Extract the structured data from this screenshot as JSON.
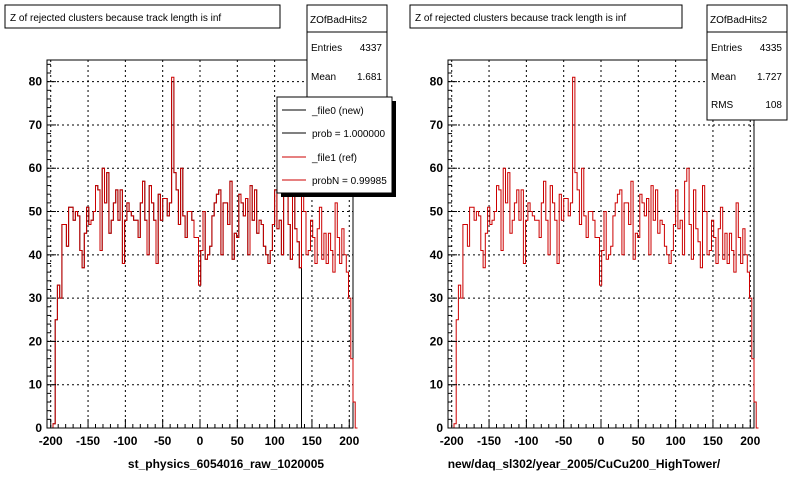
{
  "chart_data": [
    {
      "type": "line",
      "title": "Z of rejected clusters  because track length is inf",
      "xlabel": "st_physics_6054016_raw_1020005",
      "ylabel": "",
      "xlim": [
        -205,
        205
      ],
      "ylim": [
        0,
        85
      ],
      "xticks": [
        -200,
        -150,
        -100,
        -50,
        0,
        50,
        100,
        150,
        200
      ],
      "yticks": [
        0,
        10,
        20,
        30,
        40,
        50,
        60,
        70,
        80
      ],
      "grid": true,
      "stats": {
        "name": "ZOfBadHits2",
        "rows": [
          {
            "label": "Entries",
            "value": "4337"
          },
          {
            "label": "Mean",
            "value": "1.681"
          }
        ]
      },
      "legend": {
        "placement": "top-right",
        "entries": [
          {
            "label": "_file0 (new)",
            "color": "#000000"
          },
          {
            "label": "prob = 1.000000",
            "color": "#000000"
          },
          {
            "label": "_file1 (ref)",
            "color": "#cc0000"
          },
          {
            "label": "probN = 0.99985",
            "color": "#cc0000"
          }
        ]
      },
      "series": [
        {
          "color": "#000000",
          "bin_start": -200,
          "bin_width": 3,
          "values": [
            0,
            1,
            25,
            33,
            30,
            47,
            47,
            42,
            51,
            51,
            48,
            50,
            49,
            41,
            37,
            45,
            51,
            47,
            48,
            50,
            56,
            55,
            41,
            60,
            52,
            59,
            45,
            48,
            52,
            55,
            48,
            55,
            38,
            48,
            52,
            50,
            49,
            48,
            48,
            44,
            52,
            57,
            48,
            40,
            56,
            52,
            48,
            38,
            54,
            48,
            53,
            53,
            49,
            52,
            80,
            59,
            55,
            47,
            60,
            49,
            44,
            50,
            50,
            48,
            44,
            44,
            33,
            41,
            50,
            39,
            40,
            42,
            49,
            52,
            54,
            55,
            40,
            52,
            52,
            47,
            57,
            39,
            45,
            44,
            54,
            52,
            49,
            53,
            40,
            56,
            48,
            55,
            45,
            48,
            47,
            42,
            40,
            38,
            41,
            47,
            55,
            46,
            48,
            40,
            57,
            60,
            47,
            39,
            55,
            46,
            43,
            37,
            0,
            0,
            0,
            0,
            0,
            0,
            0,
            0,
            0,
            0,
            0,
            0,
            0,
            0,
            0,
            0,
            0,
            0,
            0,
            0,
            0,
            0
          ]
        },
        {
          "color": "#cc0000",
          "bin_start": -200,
          "bin_width": 3,
          "values": [
            0,
            1,
            25,
            33,
            30,
            47,
            47,
            42,
            51,
            51,
            48,
            50,
            49,
            41,
            37,
            45,
            51,
            47,
            48,
            50,
            56,
            55,
            41,
            60,
            52,
            59,
            45,
            48,
            52,
            55,
            48,
            55,
            38,
            48,
            52,
            50,
            49,
            48,
            48,
            44,
            52,
            57,
            48,
            40,
            56,
            52,
            48,
            38,
            54,
            48,
            53,
            53,
            49,
            52,
            81,
            59,
            55,
            47,
            60,
            49,
            44,
            50,
            50,
            48,
            44,
            44,
            33,
            41,
            50,
            39,
            40,
            42,
            49,
            52,
            54,
            55,
            40,
            52,
            52,
            47,
            57,
            39,
            45,
            44,
            54,
            52,
            49,
            53,
            40,
            56,
            48,
            55,
            45,
            48,
            47,
            42,
            40,
            38,
            41,
            47,
            55,
            46,
            48,
            40,
            57,
            60,
            47,
            39,
            55,
            46,
            43,
            37,
            56,
            50,
            40,
            41,
            48,
            44,
            38,
            46,
            51,
            39,
            45,
            38,
            45,
            41,
            36,
            52,
            44,
            38,
            46,
            40,
            36,
            30,
            16,
            6,
            0
          ]
        }
      ]
    },
    {
      "type": "line",
      "title": "Z of rejected clusters  because track length is inf",
      "xlabel": "new/daq_sl302/year_2005/CuCu200_HighTower/",
      "ylabel": "",
      "xlim": [
        -205,
        205
      ],
      "ylim": [
        0,
        85
      ],
      "xticks": [
        -200,
        -150,
        -100,
        -50,
        0,
        50,
        100,
        150,
        200
      ],
      "yticks": [
        0,
        10,
        20,
        30,
        40,
        50,
        60,
        70,
        80
      ],
      "grid": true,
      "stats": {
        "name": "ZOfBadHits2",
        "rows": [
          {
            "label": "Entries",
            "value": "4335"
          },
          {
            "label": "Mean",
            "value": "1.727"
          },
          {
            "label": "RMS",
            "value": "108"
          }
        ]
      },
      "series": [
        {
          "color": "#cc0000",
          "bin_start": -200,
          "bin_width": 3,
          "values": [
            0,
            1,
            25,
            33,
            30,
            47,
            47,
            42,
            51,
            51,
            48,
            50,
            49,
            41,
            37,
            45,
            51,
            47,
            48,
            50,
            56,
            55,
            41,
            60,
            52,
            59,
            45,
            48,
            52,
            55,
            48,
            55,
            38,
            48,
            52,
            50,
            49,
            48,
            48,
            44,
            52,
            57,
            48,
            40,
            56,
            52,
            48,
            38,
            54,
            48,
            53,
            53,
            49,
            52,
            81,
            59,
            55,
            47,
            60,
            49,
            44,
            50,
            50,
            48,
            44,
            44,
            33,
            41,
            50,
            39,
            40,
            42,
            49,
            52,
            54,
            55,
            40,
            52,
            52,
            47,
            57,
            39,
            45,
            44,
            54,
            52,
            49,
            53,
            40,
            56,
            48,
            55,
            45,
            48,
            47,
            42,
            40,
            38,
            41,
            47,
            55,
            46,
            48,
            40,
            57,
            60,
            47,
            39,
            55,
            46,
            43,
            37,
            56,
            50,
            40,
            41,
            48,
            44,
            38,
            46,
            51,
            39,
            45,
            38,
            45,
            41,
            36,
            52,
            44,
            38,
            46,
            40,
            36,
            30,
            16,
            6,
            0
          ]
        }
      ]
    }
  ]
}
